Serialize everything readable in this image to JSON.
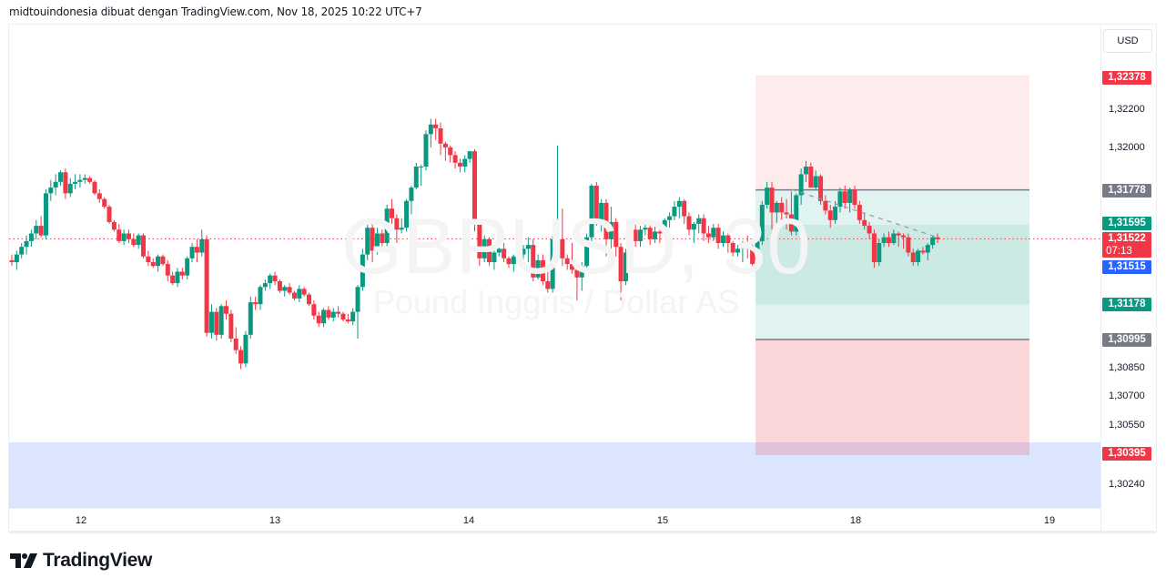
{
  "header": {
    "attribution": "midtouindonesia dibuat dengan TradingView.com, Nov 18, 2025 10:22 UTC+7"
  },
  "watermark": {
    "symbol": "GBPUSD, 30",
    "description": "Pound Inggris / Dollar AS"
  },
  "currency_button": {
    "label": "USD"
  },
  "logo": {
    "text": "TradingView"
  },
  "colors": {
    "up": "#089981",
    "down": "#f23645",
    "blue": "#2962ff",
    "gray": "#787b86",
    "target_zone": "rgba(8,153,129,0.18)",
    "stop_zone": "rgba(242,54,69,0.12)",
    "demand_zone": "#dbe5fd"
  },
  "y_axis": {
    "ticks": [
      {
        "label": "1,32200",
        "price": 1.322
      },
      {
        "label": "1,32000",
        "price": 1.32
      },
      {
        "label": "1,30850",
        "price": 1.3085
      },
      {
        "label": "1,30700",
        "price": 1.307
      },
      {
        "label": "1,30550",
        "price": 1.3055
      },
      {
        "label": "1,30240",
        "price": 1.3024
      }
    ],
    "badges": [
      {
        "label": "1,32378",
        "price": 1.32378,
        "color": "#f23645"
      },
      {
        "label": "1,31778",
        "price": 1.31778,
        "color": "#787b86"
      },
      {
        "label": "1,31595",
        "price": 1.31595,
        "color": "#089981"
      },
      {
        "label": "1,31522",
        "sub": "07:13",
        "price": 1.31522,
        "color": "#f23645"
      },
      {
        "label": "1,31515",
        "price": 1.31515,
        "color": "#2962ff"
      },
      {
        "label": "1,31178",
        "price": 1.31178,
        "color": "#089981"
      },
      {
        "label": "1,30995",
        "price": 1.30995,
        "color": "#787b86"
      },
      {
        "label": "1,30395",
        "price": 1.30395,
        "color": "#f23645"
      }
    ]
  },
  "x_axis": {
    "ticks": [
      {
        "label": "12",
        "x": 89
      },
      {
        "label": "13",
        "x": 302
      },
      {
        "label": "14",
        "x": 515
      },
      {
        "label": "15",
        "x": 728
      },
      {
        "label": "18",
        "x": 940
      },
      {
        "label": "19",
        "x": 1153
      }
    ]
  },
  "chart_data": {
    "type": "candlestick",
    "title": "GBPUSD, 30",
    "subtitle": "Pound Inggris / Dollar AS",
    "xlabel": "",
    "ylabel": "USD",
    "x_categories": [
      "12",
      "13",
      "14",
      "15",
      "18",
      "19"
    ],
    "ylim": [
      1.3016,
      1.3245
    ],
    "current_price": 1.31522,
    "countdown": "07:13",
    "long_position": {
      "entry": 1.31778,
      "target": 1.32378,
      "stop": 1.30995,
      "x_start": 830,
      "x_end": 1131
    },
    "levels": {
      "green_1": 1.31595,
      "green_2": 1.31178,
      "blue": 1.31515
    },
    "demand_zone": {
      "top": 1.30395,
      "bottom": 1.3024
    },
    "candles_ohlc": [
      [
        1.3141,
        1.3144,
        1.3138,
        1.314
      ],
      [
        1.314,
        1.3146,
        1.3136,
        1.3144
      ],
      [
        1.3144,
        1.315,
        1.3142,
        1.3148
      ],
      [
        1.3148,
        1.3154,
        1.3144,
        1.3151
      ],
      [
        1.3151,
        1.3157,
        1.3148,
        1.3155
      ],
      [
        1.3155,
        1.3162,
        1.3152,
        1.3159
      ],
      [
        1.3159,
        1.3164,
        1.3153,
        1.3154
      ],
      [
        1.3154,
        1.3178,
        1.3152,
        1.3176
      ],
      [
        1.3176,
        1.3183,
        1.3172,
        1.3179
      ],
      [
        1.3179,
        1.3186,
        1.3175,
        1.3182
      ],
      [
        1.3182,
        1.3188,
        1.318,
        1.3187
      ],
      [
        1.3187,
        1.3189,
        1.3173,
        1.3176
      ],
      [
        1.3176,
        1.3184,
        1.3174,
        1.3181
      ],
      [
        1.3181,
        1.3186,
        1.3178,
        1.3182
      ],
      [
        1.3182,
        1.3186,
        1.3179,
        1.3183
      ],
      [
        1.3183,
        1.3186,
        1.3181,
        1.3184
      ],
      [
        1.3184,
        1.3185,
        1.3181,
        1.3182
      ],
      [
        1.3182,
        1.3183,
        1.3175,
        1.3176
      ],
      [
        1.3176,
        1.3178,
        1.3171,
        1.3173
      ],
      [
        1.3173,
        1.3174,
        1.3168,
        1.3169
      ],
      [
        1.3169,
        1.317,
        1.316,
        1.3161
      ],
      [
        1.3161,
        1.3162,
        1.3156,
        1.3157
      ],
      [
        1.3157,
        1.316,
        1.315,
        1.3151
      ],
      [
        1.3151,
        1.3157,
        1.3149,
        1.3155
      ],
      [
        1.3155,
        1.3157,
        1.315,
        1.3152
      ],
      [
        1.3152,
        1.3155,
        1.3148,
        1.3149
      ],
      [
        1.3149,
        1.3155,
        1.3147,
        1.3154
      ],
      [
        1.3154,
        1.3155,
        1.3142,
        1.3143
      ],
      [
        1.3143,
        1.3146,
        1.3138,
        1.314
      ],
      [
        1.314,
        1.3142,
        1.3137,
        1.3138
      ],
      [
        1.3138,
        1.3144,
        1.3135,
        1.3143
      ],
      [
        1.3143,
        1.3144,
        1.3138,
        1.3139
      ],
      [
        1.3139,
        1.3141,
        1.313,
        1.3133
      ],
      [
        1.3133,
        1.3135,
        1.3128,
        1.3129
      ],
      [
        1.3129,
        1.3137,
        1.3127,
        1.3135
      ],
      [
        1.3135,
        1.3137,
        1.3131,
        1.3133
      ],
      [
        1.3133,
        1.3143,
        1.3131,
        1.3142
      ],
      [
        1.3142,
        1.315,
        1.314,
        1.3148
      ],
      [
        1.3148,
        1.3152,
        1.314,
        1.3145
      ],
      [
        1.3145,
        1.3157,
        1.3143,
        1.3152
      ],
      [
        1.3152,
        1.3154,
        1.3101,
        1.3103
      ],
      [
        1.3103,
        1.3118,
        1.31,
        1.3114
      ],
      [
        1.3114,
        1.3116,
        1.3099,
        1.3102
      ],
      [
        1.3102,
        1.3118,
        1.31,
        1.3117
      ],
      [
        1.3117,
        1.312,
        1.311,
        1.3113
      ],
      [
        1.3113,
        1.3115,
        1.3098,
        1.31
      ],
      [
        1.31,
        1.3106,
        1.3092,
        1.3094
      ],
      [
        1.3094,
        1.3096,
        1.3084,
        1.3087
      ],
      [
        1.3087,
        1.3104,
        1.3085,
        1.3102
      ],
      [
        1.3102,
        1.3122,
        1.31,
        1.3119
      ],
      [
        1.3119,
        1.3122,
        1.3115,
        1.3118
      ],
      [
        1.3118,
        1.3128,
        1.3115,
        1.3127
      ],
      [
        1.3127,
        1.3131,
        1.3125,
        1.3129
      ],
      [
        1.3129,
        1.3134,
        1.3126,
        1.3133
      ],
      [
        1.3133,
        1.3135,
        1.3128,
        1.313
      ],
      [
        1.313,
        1.3131,
        1.3124,
        1.3125
      ],
      [
        1.3125,
        1.3128,
        1.3122,
        1.3127
      ],
      [
        1.3127,
        1.3129,
        1.3123,
        1.3124
      ],
      [
        1.3124,
        1.3125,
        1.312,
        1.3121
      ],
      [
        1.3121,
        1.3128,
        1.3119,
        1.3126
      ],
      [
        1.3126,
        1.3127,
        1.3122,
        1.3123
      ],
      [
        1.3123,
        1.3124,
        1.3117,
        1.3118
      ],
      [
        1.3118,
        1.312,
        1.311,
        1.3112
      ],
      [
        1.3112,
        1.3114,
        1.3106,
        1.3108
      ],
      [
        1.3108,
        1.3116,
        1.3106,
        1.3115
      ],
      [
        1.3115,
        1.3117,
        1.311,
        1.3111
      ],
      [
        1.3111,
        1.3116,
        1.3109,
        1.3114
      ],
      [
        1.3114,
        1.3117,
        1.3111,
        1.3113
      ],
      [
        1.3113,
        1.3114,
        1.3109,
        1.311
      ],
      [
        1.311,
        1.3113,
        1.3108,
        1.3109
      ],
      [
        1.3109,
        1.3116,
        1.3107,
        1.3114
      ],
      [
        1.3114,
        1.3128,
        1.31,
        1.3127
      ],
      [
        1.3127,
        1.3147,
        1.3125,
        1.3144
      ],
      [
        1.3144,
        1.316,
        1.3141,
        1.3158
      ],
      [
        1.3158,
        1.316,
        1.314,
        1.3146
      ],
      [
        1.3146,
        1.3158,
        1.3144,
        1.3155
      ],
      [
        1.3155,
        1.3157,
        1.3146,
        1.315
      ],
      [
        1.315,
        1.317,
        1.3148,
        1.3168
      ],
      [
        1.3168,
        1.3173,
        1.316,
        1.3163
      ],
      [
        1.3163,
        1.3165,
        1.315,
        1.3157
      ],
      [
        1.3157,
        1.3163,
        1.3155,
        1.3158
      ],
      [
        1.3158,
        1.3173,
        1.3156,
        1.3172
      ],
      [
        1.3172,
        1.318,
        1.3165,
        1.3179
      ],
      [
        1.3179,
        1.3192,
        1.3178,
        1.319
      ],
      [
        1.319,
        1.3191,
        1.318,
        1.319
      ],
      [
        1.319,
        1.3209,
        1.3188,
        1.3207
      ],
      [
        1.3207,
        1.3215,
        1.32,
        1.3212
      ],
      [
        1.3212,
        1.3215,
        1.3204,
        1.321
      ],
      [
        1.321,
        1.3213,
        1.3196,
        1.3202
      ],
      [
        1.3202,
        1.3203,
        1.3193,
        1.32
      ],
      [
        1.32,
        1.3201,
        1.3192,
        1.3196
      ],
      [
        1.3196,
        1.3198,
        1.3189,
        1.3192
      ],
      [
        1.3192,
        1.3194,
        1.3187,
        1.319
      ],
      [
        1.319,
        1.3196,
        1.3187,
        1.3194
      ],
      [
        1.3194,
        1.3198,
        1.3192,
        1.3198
      ],
      [
        1.3198,
        1.3199,
        1.3156,
        1.316
      ],
      [
        1.316,
        1.3162,
        1.3138,
        1.3142
      ],
      [
        1.3142,
        1.3154,
        1.314,
        1.3152
      ],
      [
        1.3152,
        1.3153,
        1.3138,
        1.314
      ],
      [
        1.314,
        1.3146,
        1.3136,
        1.3145
      ],
      [
        1.3145,
        1.3151,
        1.3143,
        1.3147
      ],
      [
        1.3147,
        1.315,
        1.314,
        1.3142
      ],
      [
        1.3142,
        1.3143,
        1.3137,
        1.3139
      ],
      [
        1.3139,
        1.3144,
        1.3135,
        1.3143
      ],
      [
        1.3143,
        1.3146,
        1.314,
        1.3144
      ],
      [
        1.3144,
        1.3149,
        1.3136,
        1.3147
      ],
      [
        1.3147,
        1.3153,
        1.314,
        1.3149
      ],
      [
        1.3149,
        1.3152,
        1.313,
        1.3132
      ],
      [
        1.3132,
        1.3144,
        1.3131,
        1.3141
      ],
      [
        1.3141,
        1.3144,
        1.3128,
        1.313
      ],
      [
        1.313,
        1.3137,
        1.3124,
        1.3126
      ],
      [
        1.3126,
        1.3154,
        1.3124,
        1.3152
      ],
      [
        1.3152,
        1.3201,
        1.315,
        1.3152
      ],
      [
        1.3152,
        1.3168,
        1.3138,
        1.3142
      ],
      [
        1.3142,
        1.3144,
        1.3136,
        1.3139
      ],
      [
        1.3139,
        1.315,
        1.3134,
        1.3136
      ],
      [
        1.3136,
        1.314,
        1.312,
        1.3132
      ],
      [
        1.3132,
        1.314,
        1.3125,
        1.3138
      ],
      [
        1.3138,
        1.3155,
        1.3136,
        1.3153
      ],
      [
        1.3153,
        1.3181,
        1.3151,
        1.318
      ],
      [
        1.318,
        1.3182,
        1.3159,
        1.3162
      ],
      [
        1.3162,
        1.3173,
        1.3156,
        1.3171
      ],
      [
        1.3171,
        1.3173,
        1.3143,
        1.3152
      ],
      [
        1.3152,
        1.3169,
        1.314,
        1.3161
      ],
      [
        1.3161,
        1.3163,
        1.3143,
        1.3148
      ],
      [
        1.3148,
        1.315,
        1.312,
        1.313
      ],
      [
        1.313,
        1.3147,
        1.3128,
        1.3145
      ],
      [
        1.3145,
        1.3158,
        1.3141,
        1.3157
      ],
      [
        1.3157,
        1.316,
        1.3148,
        1.3151
      ],
      [
        1.3151,
        1.3159,
        1.3148,
        1.3157
      ],
      [
        1.3157,
        1.3161,
        1.3154,
        1.3158
      ],
      [
        1.3158,
        1.3161,
        1.3149,
        1.3152
      ],
      [
        1.3152,
        1.3159,
        1.315,
        1.3156
      ],
      [
        1.3156,
        1.3159,
        1.315,
        1.3155
      ],
      [
        1.3155,
        1.3163,
        1.3153,
        1.3162
      ],
      [
        1.3162,
        1.3166,
        1.3158,
        1.3164
      ],
      [
        1.3164,
        1.3172,
        1.3162,
        1.3169
      ],
      [
        1.3169,
        1.3174,
        1.3163,
        1.3172
      ],
      [
        1.3172,
        1.3173,
        1.316,
        1.3164
      ],
      [
        1.3164,
        1.3166,
        1.3154,
        1.3157
      ],
      [
        1.3157,
        1.3161,
        1.315,
        1.316
      ],
      [
        1.316,
        1.3165,
        1.3155,
        1.3163
      ],
      [
        1.3163,
        1.3165,
        1.3151,
        1.3155
      ],
      [
        1.3155,
        1.3159,
        1.315,
        1.3153
      ],
      [
        1.3153,
        1.316,
        1.3151,
        1.3158
      ],
      [
        1.3158,
        1.316,
        1.3147,
        1.315
      ],
      [
        1.315,
        1.3156,
        1.3148,
        1.3154
      ],
      [
        1.3154,
        1.3155,
        1.3145,
        1.315
      ],
      [
        1.315,
        1.3151,
        1.3143,
        1.3145
      ],
      [
        1.3145,
        1.3149,
        1.3143,
        1.3147
      ],
      [
        1.3147,
        1.3151,
        1.314,
        1.315
      ],
      [
        1.315,
        1.3154,
        1.3142,
        1.3147
      ],
      [
        1.3147,
        1.3152,
        1.3137,
        1.3139
      ],
      [
        1.3139,
        1.3152,
        1.3137,
        1.3151
      ],
      [
        1.3151,
        1.3172,
        1.3149,
        1.317
      ],
      [
        1.317,
        1.3182,
        1.3168,
        1.3179
      ],
      [
        1.3179,
        1.3182,
        1.3157,
        1.3166
      ],
      [
        1.3166,
        1.3172,
        1.316,
        1.3171
      ],
      [
        1.3171,
        1.3174,
        1.316,
        1.3166
      ],
      [
        1.3166,
        1.3173,
        1.3157,
        1.3165
      ],
      [
        1.3165,
        1.3177,
        1.3154,
        1.3156
      ],
      [
        1.3156,
        1.3176,
        1.3154,
        1.3175
      ],
      [
        1.3175,
        1.3189,
        1.317,
        1.3186
      ],
      [
        1.3186,
        1.3193,
        1.3182,
        1.319
      ],
      [
        1.319,
        1.3192,
        1.318,
        1.3179
      ],
      [
        1.3179,
        1.3188,
        1.3178,
        1.3185
      ],
      [
        1.3185,
        1.3186,
        1.317,
        1.3172
      ],
      [
        1.3172,
        1.3175,
        1.3165,
        1.3167
      ],
      [
        1.3167,
        1.317,
        1.3158,
        1.3162
      ],
      [
        1.3162,
        1.3172,
        1.316,
        1.3169
      ],
      [
        1.3169,
        1.3179,
        1.3166,
        1.3177
      ],
      [
        1.3177,
        1.318,
        1.3168,
        1.3171
      ],
      [
        1.3171,
        1.3179,
        1.3166,
        1.3178
      ],
      [
        1.3178,
        1.318,
        1.3168,
        1.317
      ],
      [
        1.317,
        1.3172,
        1.316,
        1.3162
      ],
      [
        1.3162,
        1.3166,
        1.3157,
        1.3159
      ],
      [
        1.3159,
        1.3161,
        1.3152,
        1.3155
      ],
      [
        1.3155,
        1.3157,
        1.3137,
        1.314
      ],
      [
        1.314,
        1.3152,
        1.3138,
        1.315
      ],
      [
        1.315,
        1.3155,
        1.3148,
        1.3153
      ],
      [
        1.3153,
        1.3156,
        1.3148,
        1.315
      ],
      [
        1.315,
        1.3157,
        1.3149,
        1.3155
      ],
      [
        1.3155,
        1.3156,
        1.3148,
        1.3154
      ],
      [
        1.3154,
        1.3155,
        1.3147,
        1.3153
      ],
      [
        1.3153,
        1.3155,
        1.3143,
        1.3145
      ],
      [
        1.3145,
        1.3147,
        1.3138,
        1.314
      ],
      [
        1.314,
        1.3147,
        1.3138,
        1.3146
      ],
      [
        1.3146,
        1.3148,
        1.3144,
        1.3145
      ],
      [
        1.3145,
        1.315,
        1.3141,
        1.3149
      ],
      [
        1.3149,
        1.3154,
        1.3147,
        1.3153
      ],
      [
        1.3153,
        1.3155,
        1.315,
        1.3152
      ]
    ]
  }
}
